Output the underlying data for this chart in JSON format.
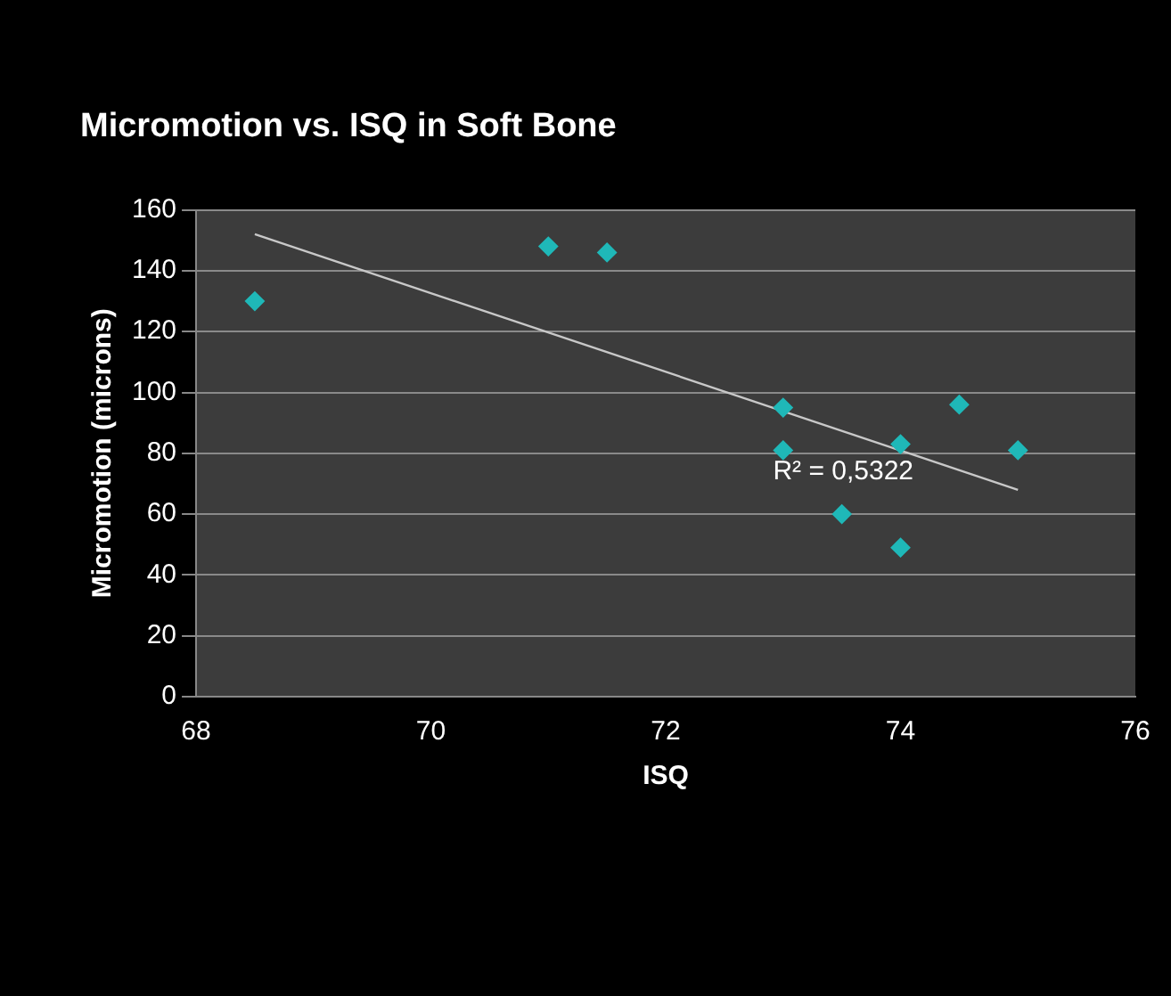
{
  "chart_data": {
    "type": "scatter",
    "title": "Micromotion vs. ISQ in Soft Bone",
    "xlabel": "ISQ",
    "ylabel": "Micromotion (microns)",
    "series": [
      {
        "color": "#1fb8b8",
        "marker": "diamond",
        "x": [
          68.5,
          71,
          71.5,
          73,
          73,
          73.5,
          74,
          74,
          74.5,
          75
        ],
        "values": [
          130,
          148,
          146,
          95,
          81,
          60,
          83,
          49,
          96,
          81
        ]
      },
      {
        "type": "line",
        "color": "#c8c8c8",
        "x": [
          68.5,
          75
        ],
        "values": [
          152,
          68
        ]
      }
    ],
    "xlim": [
      68,
      76
    ],
    "xticks": [
      68,
      70,
      72,
      74,
      76
    ],
    "ylim": [
      0,
      160
    ],
    "yticks": [
      0,
      20,
      40,
      60,
      80,
      100,
      120,
      140,
      160
    ],
    "grid": "y",
    "legend": false,
    "annotations": [
      "R² = 0,5322"
    ]
  }
}
